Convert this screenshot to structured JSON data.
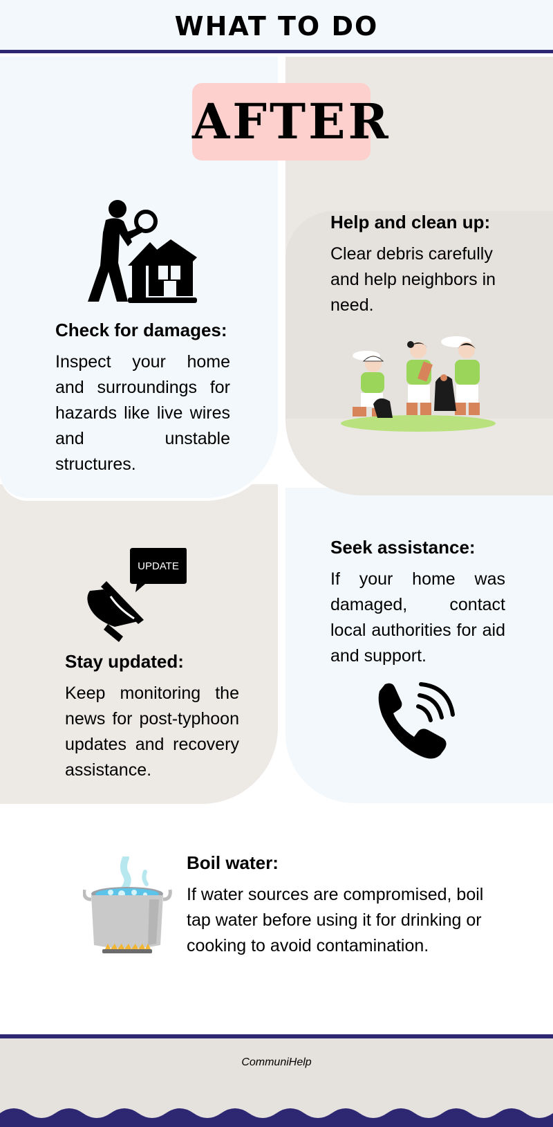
{
  "header": {
    "title": "WHAT TO DO"
  },
  "badge": {
    "label": "AFTER"
  },
  "sections": {
    "check": {
      "title": "Check for damages:",
      "text": "Inspect your home and surroundings for hazards like live wires and unstable structures.",
      "icon": "house-inspection-icon"
    },
    "help": {
      "title": "Help and clean up:",
      "text": "Clear debris carefully and help neighbors in need.",
      "icon": "cleanup-people-illustration"
    },
    "updated": {
      "title": "Stay updated:",
      "text": "Keep monitoring the news for post-typhoon updates and recovery assistance.",
      "icon": "megaphone-icon",
      "bubble": "UPDATE"
    },
    "assist": {
      "title": "Seek assistance:",
      "text": "If your home was damaged, contact local authorities for aid and support.",
      "icon": "phone-icon"
    },
    "boil": {
      "title": "Boil water:",
      "text": "If water sources are compromised, boil tap water before using it for drinking or cooking to avoid contamination.",
      "icon": "boiling-pot-icon"
    }
  },
  "footer": {
    "brand": "CommuniHelp"
  },
  "colors": {
    "accent": "#2e2873",
    "badge": "#fdd0cd",
    "panel_light": "#f2f8fc",
    "panel_beige": "#ebe8e4"
  }
}
